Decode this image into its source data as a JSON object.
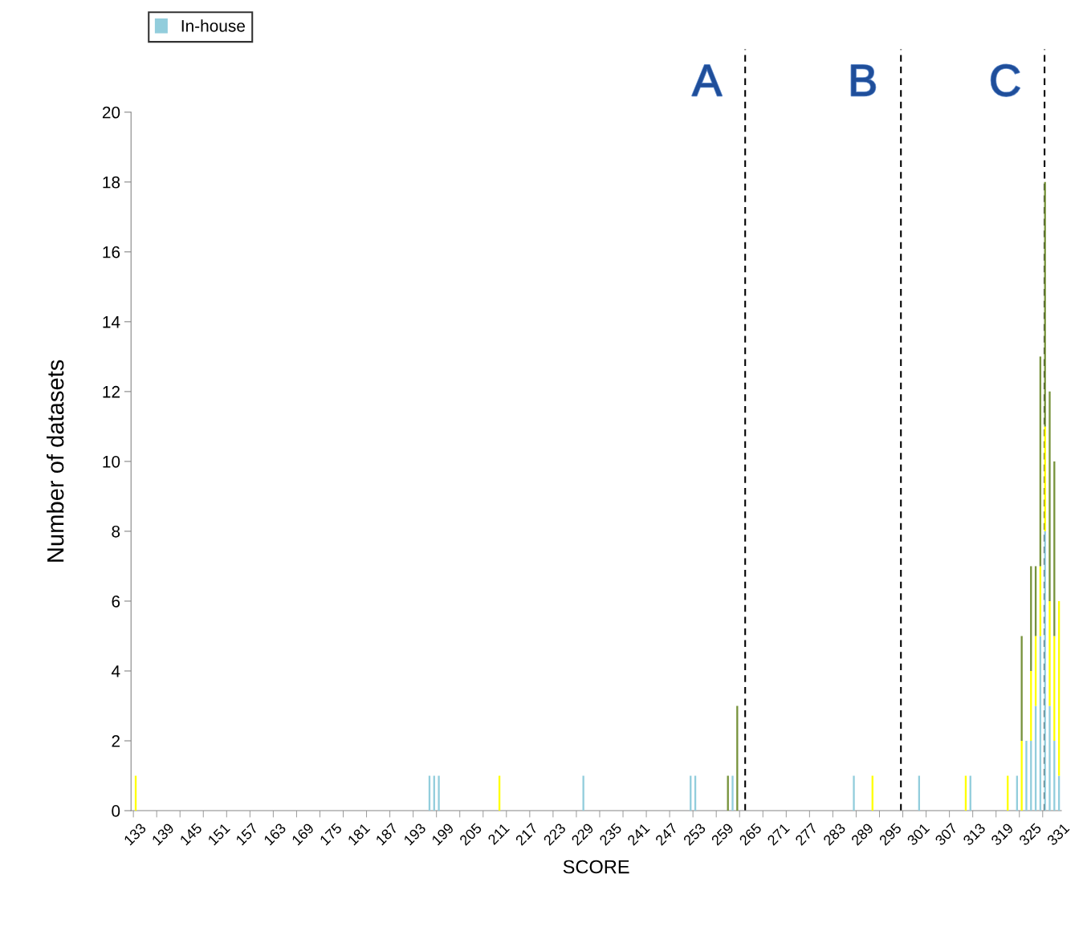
{
  "chart_data": {
    "type": "bar",
    "stacked": true,
    "xlabel": "SCORE",
    "ylabel": "Number of datasets",
    "x": [
      133,
      196,
      197,
      198,
      211,
      229,
      252,
      253,
      260,
      261,
      262,
      287,
      291,
      301,
      311,
      312,
      320,
      322,
      323,
      324,
      325,
      326,
      327,
      328,
      329,
      330,
      331
    ],
    "series": [
      {
        "name": "In-house",
        "color": "#92cddc",
        "values": [
          null,
          1,
          1,
          1,
          null,
          1,
          1,
          1,
          null,
          1,
          null,
          1,
          null,
          1,
          null,
          1,
          null,
          1,
          null,
          2,
          2,
          3,
          5,
          8,
          3,
          2,
          1
        ]
      },
      {
        "color": "#ffff00",
        "values": [
          1,
          null,
          null,
          null,
          1,
          null,
          null,
          null,
          null,
          null,
          null,
          null,
          1,
          null,
          1,
          null,
          1,
          null,
          2,
          null,
          2,
          2,
          2,
          3,
          3,
          3,
          5
        ]
      },
      {
        "color": "#77933c",
        "values": [
          null,
          null,
          null,
          null,
          null,
          null,
          null,
          null,
          1,
          null,
          3,
          null,
          null,
          null,
          null,
          null,
          null,
          null,
          3,
          null,
          3,
          2,
          6,
          7,
          6,
          5,
          null
        ]
      }
    ],
    "xlim": [
      132,
      331.5
    ],
    "xticks": [
      {
        "value": 132.5,
        "label": null
      },
      {
        "value": 137.5,
        "label": null
      },
      {
        "value": 142.5,
        "label": null
      },
      {
        "value": 147.5,
        "label": null
      },
      {
        "value": 152.5,
        "label": null
      },
      {
        "value": 157.5,
        "label": null
      },
      {
        "value": 162.5,
        "label": null
      },
      {
        "value": 167.5,
        "label": null
      },
      {
        "value": 172.5,
        "label": null
      },
      {
        "value": 177.5,
        "label": null
      },
      {
        "value": 182.5,
        "label": null
      },
      {
        "value": 187.5,
        "label": null
      },
      {
        "value": 192.5,
        "label": null
      },
      {
        "value": 197.5,
        "label": null
      },
      {
        "value": 202.5,
        "label": null
      },
      {
        "value": 207.5,
        "label": null
      },
      {
        "value": 212.5,
        "label": null
      },
      {
        "value": 217.5,
        "label": null
      },
      {
        "value": 222.5,
        "label": null
      },
      {
        "value": 227.5,
        "label": null
      },
      {
        "value": 232.5,
        "label": null
      },
      {
        "value": 237.5,
        "label": null
      },
      {
        "value": 242.5,
        "label": null
      },
      {
        "value": 247.5,
        "label": null
      },
      {
        "value": 252.5,
        "label": null
      },
      {
        "value": 257.5,
        "label": null
      },
      {
        "value": 262.5,
        "label": null
      },
      {
        "value": 267.5,
        "label": null
      },
      {
        "value": 272.5,
        "label": null
      },
      {
        "value": 277.5,
        "label": null
      },
      {
        "value": 282.5,
        "label": null
      },
      {
        "value": 287.5,
        "label": null
      },
      {
        "value": 292.5,
        "label": null
      },
      {
        "value": 297.5,
        "label": null
      },
      {
        "value": 302.5,
        "label": null
      },
      {
        "value": 307.5,
        "label": null
      },
      {
        "value": 312.5,
        "label": null
      },
      {
        "value": 317.5,
        "label": null
      },
      {
        "value": 322.5,
        "label": null
      },
      {
        "value": 327.5,
        "label": null
      },
      133,
      139,
      145,
      151,
      157,
      163,
      169,
      175,
      181,
      187,
      193,
      199,
      205,
      211,
      217,
      223,
      229,
      235,
      241,
      247,
      253,
      259,
      265,
      271,
      277,
      283,
      289,
      295,
      301,
      307,
      313,
      319,
      325,
      331
    ],
    "ylim": [
      0,
      20
    ],
    "yticks": [
      0,
      2,
      4,
      6,
      8,
      10,
      12,
      14,
      16,
      18,
      20
    ],
    "grid": false,
    "legend": "top left",
    "ref_lines": [
      {
        "axis": "x",
        "value": 263.7,
        "label": "A",
        "color": "#000000",
        "line_style": "dashed"
      },
      {
        "axis": "x",
        "value": 297.1,
        "label": "B",
        "color": "#000000",
        "line_style": "dashed"
      },
      {
        "axis": "x",
        "value": 327.9,
        "label": "C",
        "color": "#000000",
        "line_style": "dashed"
      }
    ]
  }
}
